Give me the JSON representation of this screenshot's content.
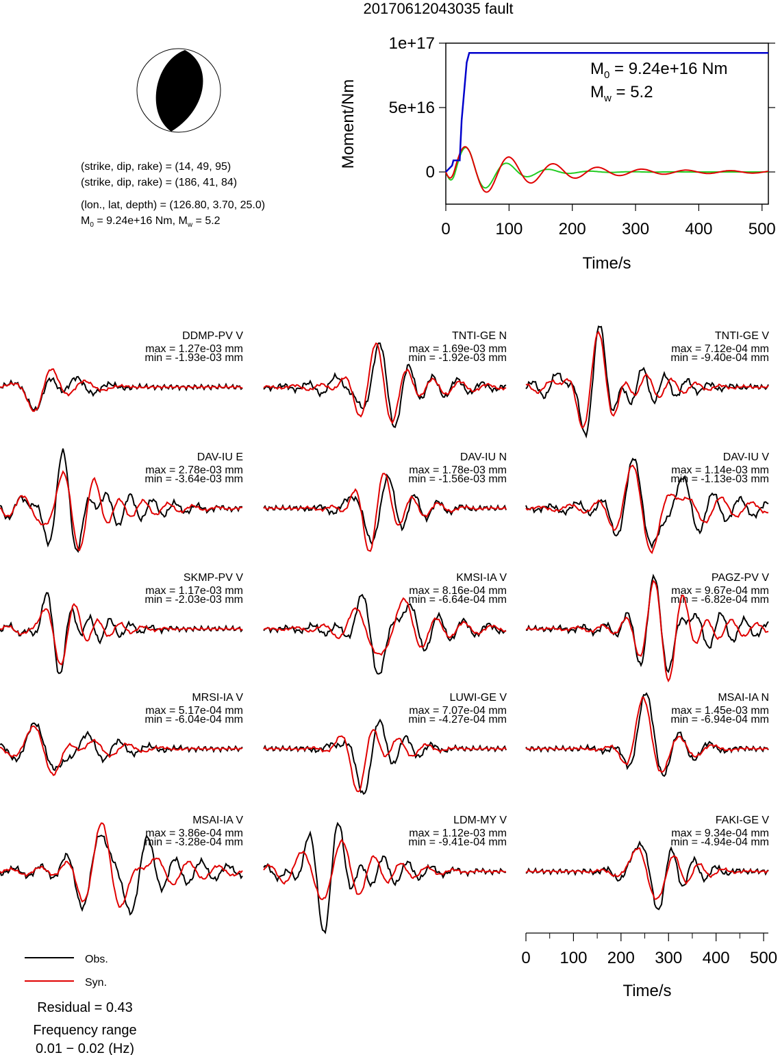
{
  "title": "20170612043035 fault",
  "colors": {
    "obs": "#000000",
    "syn": "#e00000",
    "moment": "#0000cc",
    "stf_green": "#22cc22"
  },
  "focal_mechanism": {
    "plane1": "(strike, dip, rake) = (14, 49, 95)",
    "plane2": "(strike, dip, rake) = (186, 41, 84)",
    "location": "(lon., lat, depth) = (126.80, 3.70, 25.0)",
    "moment_prefix": "M",
    "moment_value": " = 9.24e+16 Nm, M",
    "mw_value": " = 5.2",
    "sub0": "0",
    "subw": "w"
  },
  "moment_chart": {
    "ylabel": "Moment/Nm",
    "xlabel": "Time/s",
    "yticks": [
      "1e+17",
      "5e+16",
      "0"
    ],
    "xticks": [
      "0",
      "100",
      "200",
      "300",
      "400",
      "500"
    ],
    "m0_label": "M",
    "m0_value": " = 9.24e+16 Nm",
    "mw_label": "M",
    "mw_value": " = 5.2",
    "sub0": "0",
    "subw": "w"
  },
  "chart_data": {
    "type": "line",
    "title": "20170612043035 fault",
    "xlabel": "Time/s",
    "ylabel": "Moment/Nm",
    "xlim": [
      0,
      510
    ],
    "ylim": [
      -2.5e+16,
      1e+17
    ],
    "series": [
      {
        "name": "moment",
        "x": [
          0,
          10,
          12,
          22,
          25,
          33,
          37,
          510
        ],
        "y": [
          0,
          5000000000000000.0,
          9000000000000000.0,
          9000000000000000.0,
          4e+16,
          8.5e+16,
          9.24e+16,
          9.24e+16
        ]
      }
    ],
    "stations": [
      {
        "label": "DDMP-PV V",
        "max": "max = 1.27e-03 mm",
        "min": "min = -1.93e-03 mm"
      },
      {
        "label": "TNTI-GE N",
        "max": "max = 1.69e-03 mm",
        "min": "min = -1.92e-03 mm"
      },
      {
        "label": "TNTI-GE V",
        "max": "max = 7.12e-04 mm",
        "min": "min = -9.40e-04 mm"
      },
      {
        "label": "DAV-IU E",
        "max": "max = 2.78e-03 mm",
        "min": "min = -3.64e-03 mm"
      },
      {
        "label": "DAV-IU N",
        "max": "max = 1.78e-03 mm",
        "min": "min = -1.56e-03 mm"
      },
      {
        "label": "DAV-IU V",
        "max": "max = 1.14e-03 mm",
        "min": "min = -1.13e-03 mm"
      },
      {
        "label": "SKMP-PV V",
        "max": "max = 1.17e-03 mm",
        "min": "min = -2.03e-03 mm"
      },
      {
        "label": "KMSI-IA V",
        "max": "max = 8.16e-04 mm",
        "min": "min = -6.64e-04 mm"
      },
      {
        "label": "PAGZ-PV V",
        "max": "max = 9.67e-04 mm",
        "min": "min = -6.82e-04 mm"
      },
      {
        "label": "MRSI-IA V",
        "max": "max = 5.17e-04 mm",
        "min": "min = -6.04e-04 mm"
      },
      {
        "label": "LUWI-GE V",
        "max": "max = 7.07e-04 mm",
        "min": "min = -4.27e-04 mm"
      },
      {
        "label": "MSAI-IA N",
        "max": "max = 1.45e-03 mm",
        "min": "min = -6.94e-04 mm"
      },
      {
        "label": "MSAI-IA V",
        "max": "max = 3.86e-04 mm",
        "min": "min = -3.28e-04 mm"
      },
      {
        "label": "LDM-MY V",
        "max": "max = 1.12e-03 mm",
        "min": "min = -9.41e-04 mm"
      },
      {
        "label": "FAKI-GE V",
        "max": "max = 9.34e-04 mm",
        "min": "min = -4.94e-04 mm"
      }
    ]
  },
  "waveform_axis": {
    "xlabel": "Time/s",
    "xticks": [
      "0",
      "100",
      "200",
      "300",
      "400",
      "500"
    ]
  },
  "legend": {
    "obs": "Obs.",
    "syn": "Syn."
  },
  "footer": {
    "residual": "Residual = 0.43",
    "freq_title": "Frequency range",
    "freq_value": "0.01 − 0.02 (Hz)"
  }
}
